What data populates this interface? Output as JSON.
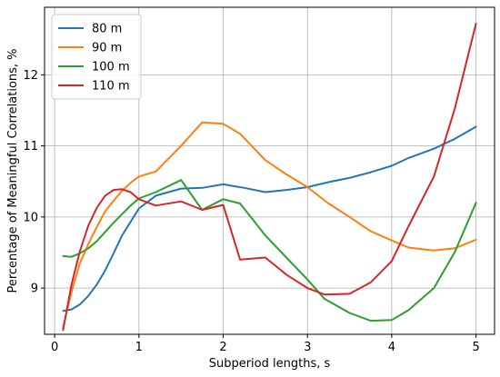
{
  "chart_data": {
    "type": "line",
    "xlabel": "Subperiod lengths, s",
    "ylabel": "Percentage of Meaningful Correlations, %",
    "xlim": [
      -0.12,
      5.22
    ],
    "ylim": [
      8.35,
      12.95
    ],
    "xticks": [
      0,
      1,
      2,
      3,
      4,
      5
    ],
    "yticks": [
      9,
      10,
      11,
      12
    ],
    "grid": true,
    "legend_position": "top-left",
    "series": [
      {
        "name": "80 m",
        "color": "#1f77b4",
        "x": [
          0.1,
          0.2,
          0.3,
          0.4,
          0.5,
          0.6,
          0.7,
          0.8,
          0.9,
          1.0,
          1.2,
          1.5,
          1.75,
          2.0,
          2.25,
          2.5,
          2.75,
          3.0,
          3.25,
          3.5,
          3.75,
          4.0,
          4.2,
          4.5,
          4.75,
          5.0
        ],
        "y": [
          8.68,
          8.7,
          8.77,
          8.89,
          9.05,
          9.25,
          9.49,
          9.74,
          9.93,
          10.12,
          10.3,
          10.4,
          10.41,
          10.46,
          10.41,
          10.35,
          10.38,
          10.42,
          10.49,
          10.55,
          10.63,
          10.72,
          10.83,
          10.96,
          11.1,
          11.27
        ]
      },
      {
        "name": "90 m",
        "color": "#ff7f0e",
        "x": [
          0.1,
          0.2,
          0.3,
          0.4,
          0.5,
          0.6,
          0.7,
          0.8,
          0.9,
          1.0,
          1.2,
          1.5,
          1.75,
          2.0,
          2.2,
          2.5,
          2.75,
          3.0,
          3.25,
          3.5,
          3.75,
          4.0,
          4.2,
          4.5,
          4.75,
          5.0
        ],
        "y": [
          8.45,
          8.95,
          9.35,
          9.62,
          9.86,
          10.08,
          10.23,
          10.37,
          10.48,
          10.57,
          10.64,
          11.0,
          11.33,
          11.31,
          11.17,
          10.8,
          10.6,
          10.42,
          10.19,
          10.0,
          9.8,
          9.67,
          9.57,
          9.53,
          9.56,
          9.68
        ]
      },
      {
        "name": "100 m",
        "color": "#2ca02c",
        "x": [
          0.1,
          0.2,
          0.3,
          0.4,
          0.5,
          0.6,
          0.7,
          0.8,
          0.9,
          1.0,
          1.2,
          1.5,
          1.75,
          2.0,
          2.2,
          2.5,
          2.75,
          3.0,
          3.2,
          3.5,
          3.75,
          4.0,
          4.2,
          4.5,
          4.75,
          5.0
        ],
        "y": [
          9.45,
          9.44,
          9.49,
          9.56,
          9.66,
          9.79,
          9.92,
          10.04,
          10.16,
          10.26,
          10.35,
          10.52,
          10.1,
          10.25,
          10.19,
          9.74,
          9.43,
          9.12,
          8.85,
          8.65,
          8.54,
          8.55,
          8.69,
          9.0,
          9.51,
          10.2
        ]
      },
      {
        "name": "110 m",
        "color": "#d62728",
        "x": [
          0.1,
          0.2,
          0.3,
          0.4,
          0.5,
          0.6,
          0.7,
          0.8,
          0.9,
          1.0,
          1.2,
          1.5,
          1.75,
          2.0,
          2.2,
          2.5,
          2.75,
          3.0,
          3.2,
          3.5,
          3.75,
          4.0,
          4.2,
          4.5,
          4.75,
          5.0
        ],
        "y": [
          8.41,
          9.05,
          9.52,
          9.88,
          10.13,
          10.3,
          10.38,
          10.39,
          10.35,
          10.25,
          10.16,
          10.22,
          10.1,
          10.17,
          9.4,
          9.43,
          9.19,
          9.0,
          8.91,
          8.92,
          9.08,
          9.38,
          9.87,
          10.57,
          11.53,
          12.72
        ]
      }
    ]
  }
}
